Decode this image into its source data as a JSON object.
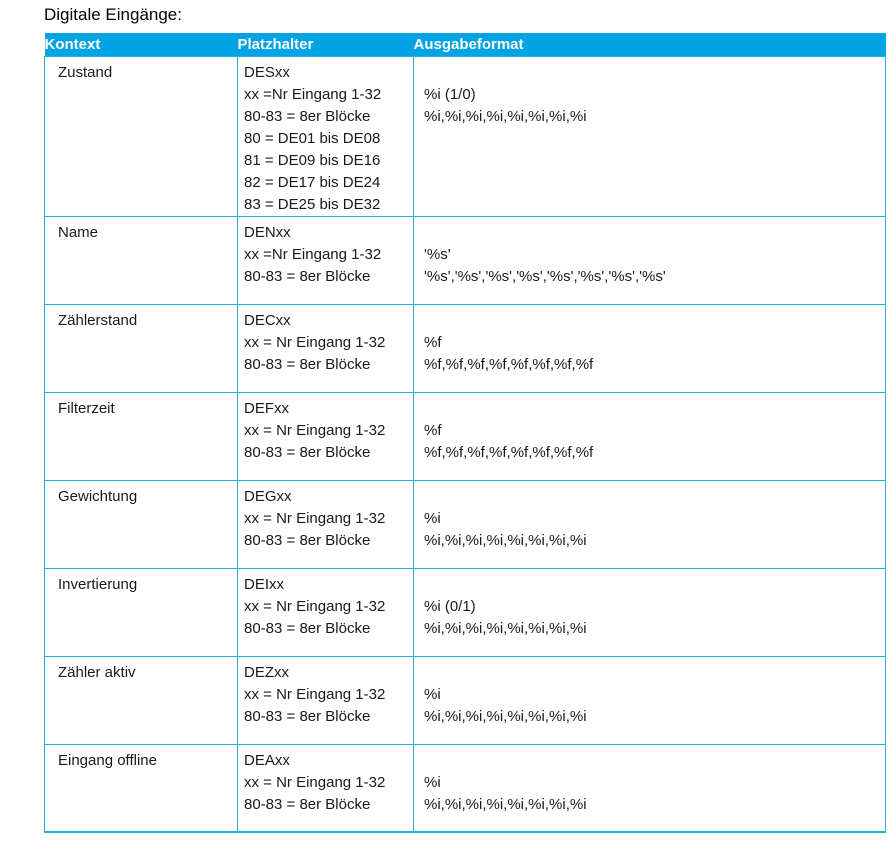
{
  "title": "Digitale Eingänge:",
  "colors": {
    "accent": "#00A4E4",
    "border": "#29ABE2",
    "header_text": "#ffffff",
    "body_text": "#1a1a1a"
  },
  "table": {
    "headers": {
      "kontext": "Kontext",
      "platzhalter": "Platzhalter",
      "ausgabeformat": "Ausgabeformat"
    },
    "rows": [
      {
        "kontext": "Zustand",
        "platzhalter": [
          "DESxx",
          "xx =Nr Eingang 1-32",
          "80-83 = 8er Blöcke",
          "80 = DE01 bis DE08",
          "81 = DE09 bis DE16",
          "82 = DE17 bis DE24",
          "83 = DE25 bis DE32"
        ],
        "ausgabeformat": [
          "",
          "%i (1/0)",
          "%i,%i,%i,%i,%i,%i,%i,%i"
        ]
      },
      {
        "kontext": "Name",
        "platzhalter": [
          "DENxx",
          "xx =Nr Eingang 1-32",
          "80-83 = 8er Blöcke"
        ],
        "ausgabeformat": [
          "",
          "'%s'",
          "'%s','%s','%s','%s','%s','%s','%s','%s'"
        ]
      },
      {
        "kontext": "Zählerstand",
        "platzhalter": [
          "DECxx",
          "xx = Nr Eingang 1-32",
          "80-83 = 8er Blöcke"
        ],
        "ausgabeformat": [
          "",
          "%f",
          "%f,%f,%f,%f,%f,%f,%f,%f"
        ]
      },
      {
        "kontext": "Filterzeit",
        "platzhalter": [
          "DEFxx",
          "xx = Nr Eingang 1-32",
          "80-83 = 8er Blöcke"
        ],
        "ausgabeformat": [
          "",
          "%f",
          "%f,%f,%f,%f,%f,%f,%f,%f"
        ]
      },
      {
        "kontext": "Gewichtung",
        "platzhalter": [
          "DEGxx",
          "xx = Nr Eingang 1-32",
          "80-83 = 8er Blöcke"
        ],
        "ausgabeformat": [
          "",
          "%i",
          "%i,%i,%i,%i,%i,%i,%i,%i"
        ]
      },
      {
        "kontext": "Invertierung",
        "platzhalter": [
          "DEIxx",
          "xx = Nr Eingang 1-32",
          "80-83 = 8er Blöcke"
        ],
        "ausgabeformat": [
          "",
          "%i (0/1)",
          "%i,%i,%i,%i,%i,%i,%i,%i"
        ]
      },
      {
        "kontext": "Zähler aktiv",
        "platzhalter": [
          "DEZxx",
          "xx = Nr Eingang 1-32",
          "80-83 = 8er Blöcke"
        ],
        "ausgabeformat": [
          "",
          "%i",
          "%i,%i,%i,%i,%i,%i,%i,%i"
        ]
      },
      {
        "kontext": "Eingang offline",
        "platzhalter": [
          "DEAxx",
          "xx = Nr Eingang 1-32",
          "80-83 = 8er Blöcke"
        ],
        "ausgabeformat": [
          "",
          "%i",
          "%i,%i,%i,%i,%i,%i,%i,%i"
        ]
      }
    ]
  }
}
